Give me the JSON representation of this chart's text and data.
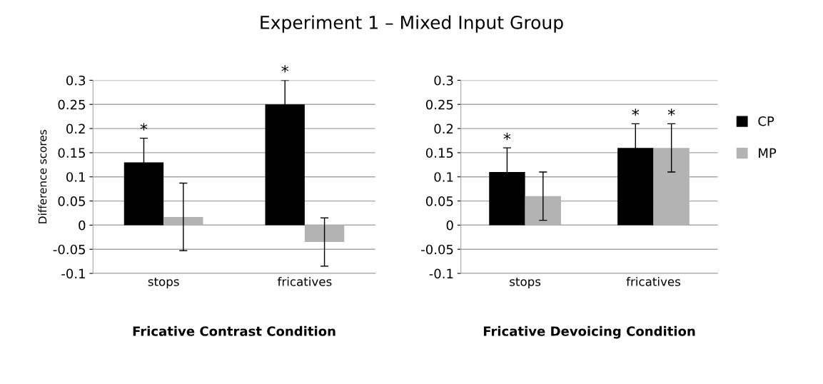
{
  "chart_data": [
    {
      "type": "bar",
      "title": "Experiment 1 – Mixed Input Group",
      "xlabel": "Fricative Contrast Condition",
      "ylabel": "Difference scores",
      "categories": [
        "stops",
        "fricatives"
      ],
      "series": [
        {
          "color": "#000000",
          "values": [
            0.13,
            0.25
          ],
          "errors": [
            0.05,
            0.05
          ],
          "value_labels": [
            "*",
            "*"
          ]
        },
        {
          "color": "#b3b3b3",
          "values": [
            0.017,
            -0.035
          ],
          "errors": [
            0.07,
            0.05
          ],
          "value_labels": [
            null,
            null
          ]
        }
      ],
      "ylim": [
        -0.1,
        0.3
      ],
      "yticks": [
        -0.1,
        -0.05,
        0,
        0.05,
        0.1,
        0.15,
        0.2,
        0.25,
        0.3
      ],
      "grid": "y"
    },
    {
      "type": "bar",
      "xlabel": "Fricative Devoicing Condition",
      "categories": [
        "stops",
        "fricatives"
      ],
      "series": [
        {
          "name": "CP",
          "color": "#000000",
          "values": [
            0.11,
            0.16
          ],
          "errors": [
            0.05,
            0.05
          ],
          "value_labels": [
            "*",
            "*"
          ]
        },
        {
          "name": "MP",
          "color": "#b3b3b3",
          "values": [
            0.06,
            0.16
          ],
          "errors": [
            0.05,
            0.05
          ],
          "value_labels": [
            null,
            "*"
          ]
        }
      ],
      "ylim": [
        -0.1,
        0.3
      ],
      "yticks": [
        -0.1,
        -0.05,
        0,
        0.05,
        0.1,
        0.15,
        0.2,
        0.25,
        0.3
      ],
      "grid": "y",
      "legend": "right"
    }
  ]
}
